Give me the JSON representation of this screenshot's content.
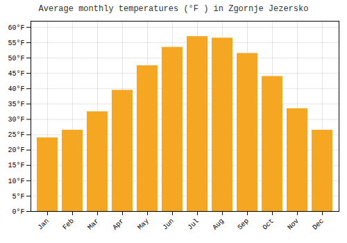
{
  "chart_data": {
    "type": "bar",
    "title": "Average monthly temperatures (°F ) in Zgornje Jezersko",
    "categories": [
      "Jan",
      "Feb",
      "Mar",
      "Apr",
      "May",
      "Jun",
      "Jul",
      "Aug",
      "Sep",
      "Oct",
      "Nov",
      "Dec"
    ],
    "values": [
      24.0,
      26.5,
      32.5,
      39.5,
      47.5,
      53.5,
      57.0,
      56.5,
      51.5,
      44.0,
      33.5,
      26.5
    ],
    "color": "#F5A623",
    "ylim": [
      0,
      62
    ],
    "yticks": [
      {
        "value": 0,
        "label": "0°F"
      },
      {
        "value": 5,
        "label": "5°F"
      },
      {
        "value": 10,
        "label": "10°F"
      },
      {
        "value": 15,
        "label": "15°F"
      },
      {
        "value": 20,
        "label": "20°F"
      },
      {
        "value": 25,
        "label": "25°F"
      },
      {
        "value": 30,
        "label": "30°F"
      },
      {
        "value": 35,
        "label": "35°F"
      },
      {
        "value": 40,
        "label": "40°F"
      },
      {
        "value": 45,
        "label": "45°F"
      },
      {
        "value": 50,
        "label": "50°F"
      },
      {
        "value": 55,
        "label": "55°F"
      },
      {
        "value": 60,
        "label": "60°F"
      }
    ],
    "grid": true
  }
}
